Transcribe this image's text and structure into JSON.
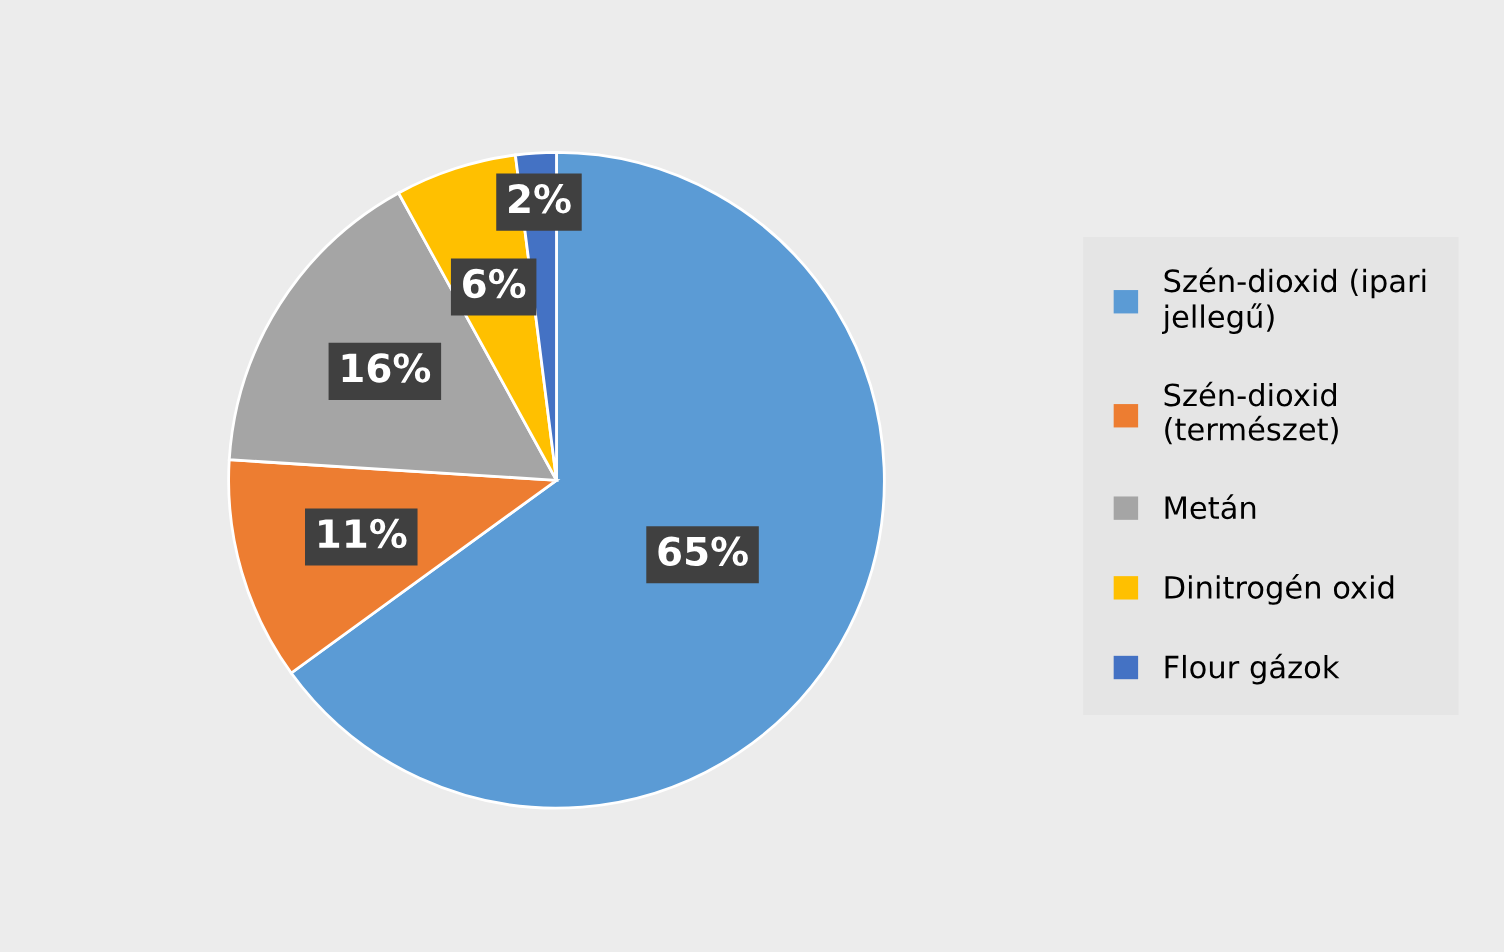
{
  "chart_data": {
    "type": "pie",
    "categories": [
      "Szén-dioxid (ipari jellegű)",
      "Szén-dioxid (természet)",
      "Metán",
      "Dinitrogén oxid",
      "Flour gázok"
    ],
    "values": [
      65,
      11,
      16,
      6,
      2
    ],
    "colors": [
      "#5b9bd5",
      "#ed7d31",
      "#a5a5a5",
      "#ffc000",
      "#4472c4"
    ],
    "value_labels": [
      "65%",
      "11%",
      "16%",
      "6%",
      "2%"
    ],
    "legend": "right"
  }
}
